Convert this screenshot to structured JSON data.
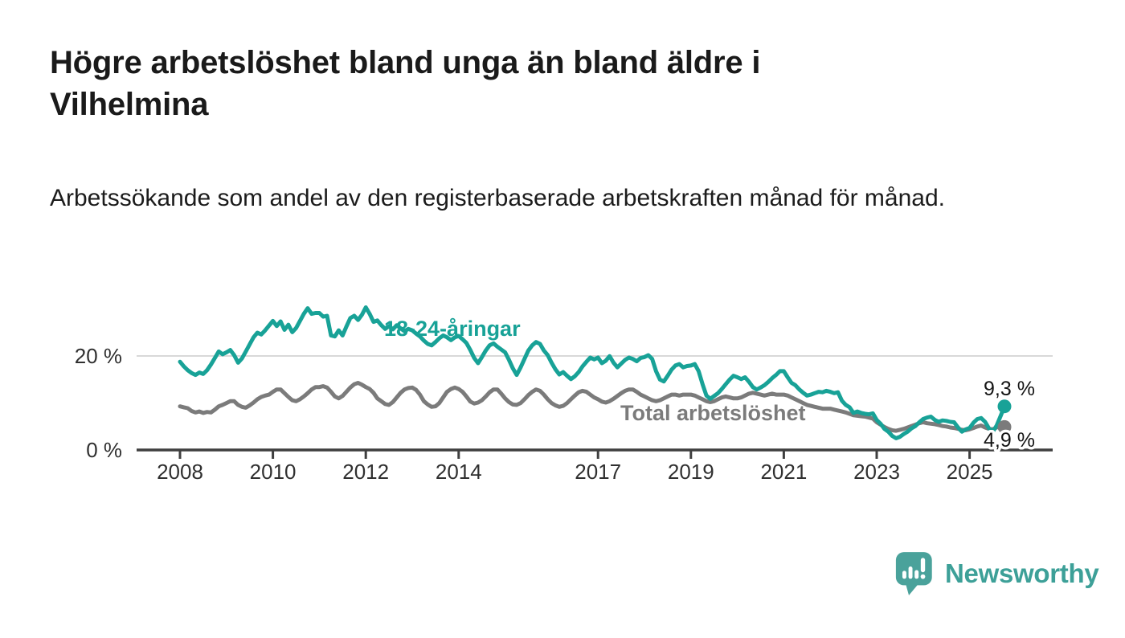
{
  "headline": "Högre arbetslöshet bland unga än bland äldre i Vilhelmina",
  "subtitle": "Arbetssökande som andel av den registerbaserade arbetskraften månad för månad.",
  "branding": {
    "logo_text": "Newsworthy",
    "logo_icon": "speech-bubble-with-bar-chart-and-exclamation",
    "brand_color": "#3da098"
  },
  "chart_data": {
    "type": "line",
    "frequency": "monthly",
    "x_start": "2008-01",
    "x_end": "2025-10",
    "unit": "%",
    "ylim": [
      0,
      34
    ],
    "xlabel": "",
    "ylabel": "",
    "grid": "single light horizontal gridline at 20 %",
    "legend_position": "inline labels on lines, end values at right",
    "x_tick_labels": [
      "2008",
      "2010",
      "2012",
      "2014",
      "2017",
      "2019",
      "2021",
      "2023",
      "2025"
    ],
    "x_tick_years": [
      2008,
      2010,
      2012,
      2014,
      2017,
      2019,
      2021,
      2023,
      2025
    ],
    "y_tick_labels": [
      "0 %",
      "20 %"
    ],
    "y_tick_values": [
      0,
      20
    ],
    "series": [
      {
        "key": "youth",
        "name": "18-24-åringar",
        "color": "#18a297",
        "end_label": "9,3 %",
        "end_value": 9.3,
        "values": [
          18.8,
          17.8,
          17.0,
          16.4,
          16.0,
          16.5,
          16.2,
          17.0,
          18.2,
          19.6,
          21.0,
          20.4,
          20.8,
          21.3,
          20.2,
          18.6,
          19.5,
          21.0,
          22.5,
          24.0,
          25.0,
          24.6,
          25.5,
          26.5,
          27.5,
          26.4,
          27.4,
          25.6,
          26.7,
          25.1,
          26.0,
          27.5,
          29.0,
          30.2,
          29.0,
          29.2,
          29.2,
          28.4,
          28.6,
          24.4,
          24.2,
          25.5,
          24.4,
          26.3,
          28.1,
          28.6,
          27.7,
          28.8,
          30.4,
          29.0,
          27.3,
          27.6,
          26.6,
          25.8,
          26.4,
          25.7,
          26.6,
          25.9,
          25.3,
          25.8,
          25.5,
          24.8,
          24.2,
          23.3,
          22.6,
          22.3,
          23.0,
          23.8,
          24.4,
          24.0,
          23.4,
          24.0,
          24.3,
          23.6,
          22.8,
          21.3,
          19.6,
          18.5,
          19.8,
          21.2,
          22.3,
          22.7,
          22.0,
          21.4,
          20.8,
          19.2,
          17.4,
          16.0,
          17.6,
          19.4,
          21.2,
          22.3,
          23.0,
          22.6,
          21.2,
          20.2,
          18.6,
          17.2,
          16.1,
          16.6,
          15.8,
          15.1,
          15.7,
          16.6,
          17.8,
          18.8,
          19.7,
          19.3,
          19.7,
          18.5,
          19.0,
          20.0,
          18.6,
          17.6,
          18.4,
          19.2,
          19.7,
          19.4,
          18.9,
          19.6,
          19.8,
          20.2,
          19.4,
          16.8,
          15.0,
          14.6,
          15.8,
          17.1,
          18.0,
          18.3,
          17.6,
          17.9,
          18.0,
          18.3,
          16.8,
          14.0,
          11.6,
          10.9,
          11.5,
          12.1,
          13.0,
          14.0,
          15.0,
          15.8,
          15.5,
          15.1,
          15.5,
          14.5,
          13.4,
          12.9,
          13.3,
          13.8,
          14.5,
          15.3,
          16.0,
          16.8,
          16.8,
          15.5,
          14.3,
          13.8,
          12.9,
          12.2,
          11.6,
          11.8,
          12.1,
          12.4,
          12.3,
          12.6,
          12.4,
          12.1,
          12.3,
          10.5,
          9.6,
          9.1,
          7.9,
          8.2,
          7.9,
          7.7,
          7.6,
          7.8,
          6.4,
          5.6,
          4.5,
          3.9,
          3.0,
          2.5,
          2.8,
          3.4,
          3.9,
          4.6,
          5.1,
          5.9,
          6.6,
          6.9,
          7.1,
          6.4,
          6.0,
          6.3,
          6.2,
          6.0,
          5.9,
          4.8,
          3.9,
          4.4,
          4.7,
          5.8,
          6.6,
          6.8,
          6.0,
          4.6,
          3.9,
          5.2,
          7.2,
          9.3
        ]
      },
      {
        "key": "total",
        "name": "Total arbetslöshet",
        "color": "#7b7b7b",
        "end_label": "4,9 %",
        "end_value": 4.9,
        "values": [
          9.3,
          9.1,
          8.9,
          8.3,
          8.0,
          8.2,
          7.9,
          8.1,
          8.0,
          8.6,
          9.3,
          9.6,
          10.0,
          10.4,
          10.4,
          9.6,
          9.2,
          9.0,
          9.5,
          10.1,
          10.8,
          11.3,
          11.6,
          11.8,
          12.4,
          12.9,
          12.9,
          12.1,
          11.3,
          10.6,
          10.4,
          10.8,
          11.4,
          12.1,
          12.9,
          13.4,
          13.4,
          13.6,
          13.3,
          12.4,
          11.4,
          11.0,
          11.5,
          12.4,
          13.3,
          14.0,
          14.3,
          13.9,
          13.4,
          13.0,
          12.2,
          11.0,
          10.4,
          9.8,
          9.6,
          10.2,
          11.2,
          12.2,
          12.9,
          13.2,
          13.3,
          12.8,
          11.8,
          10.4,
          9.7,
          9.2,
          9.3,
          10.0,
          11.2,
          12.4,
          13.0,
          13.3,
          13.0,
          12.4,
          11.4,
          10.3,
          9.9,
          10.1,
          10.6,
          11.4,
          12.3,
          12.9,
          12.9,
          12.0,
          11.0,
          10.2,
          9.7,
          9.6,
          10.0,
          10.8,
          11.7,
          12.4,
          12.9,
          12.6,
          11.8,
          10.8,
          10.0,
          9.5,
          9.2,
          9.4,
          10.0,
          10.8,
          11.6,
          12.3,
          12.6,
          12.4,
          11.8,
          11.2,
          10.8,
          10.3,
          10.1,
          10.4,
          10.9,
          11.5,
          12.1,
          12.6,
          12.9,
          12.9,
          12.4,
          11.8,
          11.4,
          11.0,
          10.6,
          10.4,
          10.6,
          11.0,
          11.4,
          11.8,
          11.8,
          11.6,
          11.8,
          11.8,
          11.8,
          11.6,
          11.2,
          10.8,
          10.4,
          10.2,
          10.4,
          10.8,
          11.2,
          11.4,
          11.2,
          11.0,
          11.0,
          11.2,
          11.6,
          12.0,
          12.2,
          12.0,
          11.8,
          11.6,
          11.8,
          12.0,
          11.8,
          11.8,
          11.8,
          11.6,
          11.2,
          10.8,
          10.4,
          10.0,
          9.6,
          9.4,
          9.2,
          9.0,
          8.8,
          8.8,
          8.8,
          8.6,
          8.4,
          8.2,
          8.0,
          7.7,
          7.4,
          7.3,
          7.2,
          7.1,
          6.9,
          6.7,
          5.9,
          5.4,
          4.9,
          4.5,
          4.2,
          4.1,
          4.3,
          4.5,
          4.8,
          5.1,
          5.4,
          5.7,
          5.9,
          5.7,
          5.6,
          5.5,
          5.3,
          5.1,
          5.0,
          4.8,
          4.7,
          4.5,
          4.3,
          4.2,
          4.4,
          4.7,
          5.0,
          5.2,
          4.8,
          4.5,
          4.4,
          4.8,
          5.1,
          4.9
        ]
      }
    ]
  }
}
